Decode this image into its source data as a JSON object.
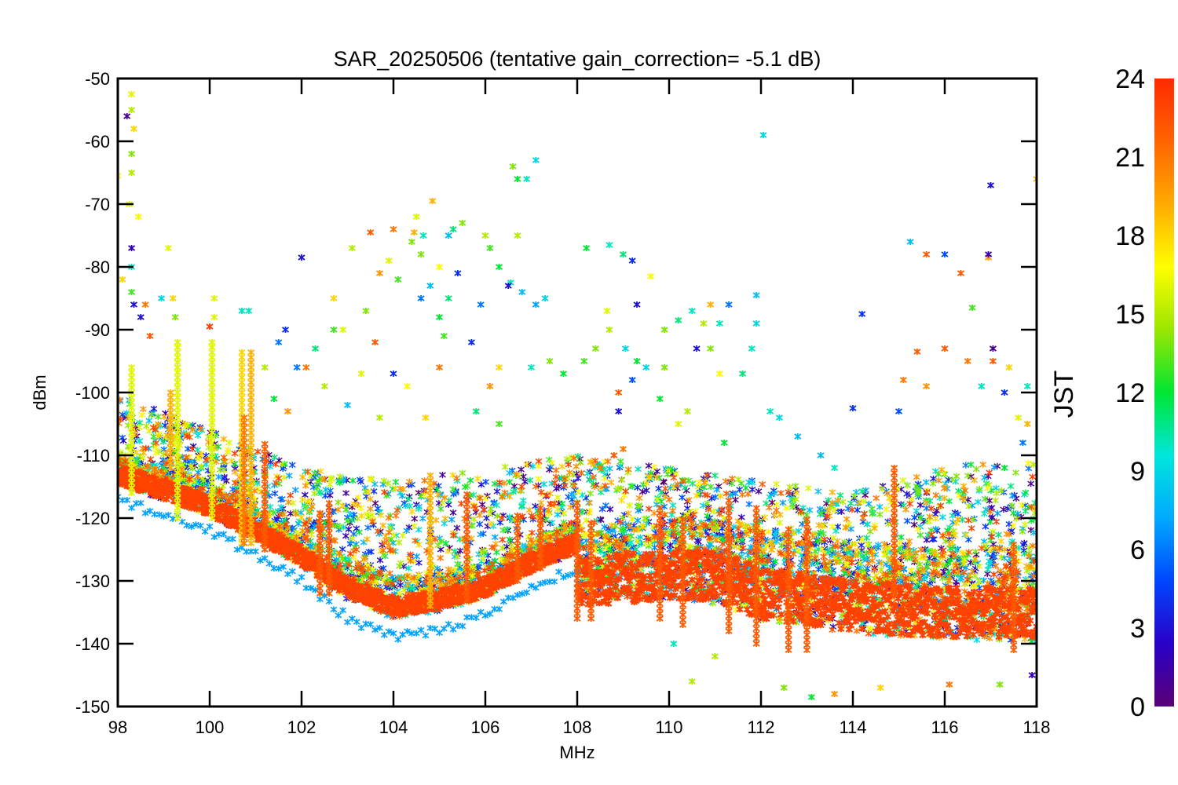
{
  "chart_data": {
    "type": "scatter",
    "title": "SAR_20250506 (tentative gain_correction= -5.1 dB)",
    "xlabel": "MHz",
    "ylabel": "dBm",
    "xlim": [
      98,
      118
    ],
    "ylim": [
      -150,
      -50
    ],
    "x_ticks": [
      98,
      100,
      102,
      104,
      106,
      108,
      110,
      112,
      114,
      116,
      118
    ],
    "y_ticks": [
      -150,
      -140,
      -130,
      -120,
      -110,
      -100,
      -90,
      -80,
      -70,
      -60,
      -50
    ],
    "grid": false,
    "marker": "asterisk",
    "color_scale": {
      "label": "JST",
      "range": [
        0,
        24
      ],
      "ticks": [
        0,
        3,
        6,
        9,
        12,
        15,
        18,
        21,
        24
      ],
      "colormap": "rainbow",
      "colors": [
        "#5a0075",
        "#2a00c8",
        "#0046ff",
        "#00aaff",
        "#00e6dc",
        "#00e632",
        "#9be600",
        "#ffff00",
        "#ffaa00",
        "#ff6400",
        "#ff2a00"
      ]
    },
    "noise_floor": {
      "description_points": [
        [
          98,
          -113
        ],
        [
          100,
          -118
        ],
        [
          102,
          -126
        ],
        [
          103,
          -131
        ],
        [
          104,
          -134
        ],
        [
          105,
          -133
        ],
        [
          106,
          -131
        ],
        [
          107,
          -127
        ],
        [
          108,
          -124
        ],
        [
          108.01,
          -130
        ],
        [
          110,
          -129
        ],
        [
          111,
          -129
        ],
        [
          112,
          -132
        ],
        [
          114,
          -134
        ],
        [
          116,
          -135
        ],
        [
          118,
          -135
        ]
      ],
      "hour": 23
    },
    "lower_envelope": [
      [
        98,
        -117
      ],
      [
        100,
        -122
      ],
      [
        102,
        -130
      ],
      [
        103,
        -136
      ],
      [
        104,
        -139
      ],
      [
        105,
        -138
      ],
      [
        106,
        -135
      ],
      [
        107,
        -131
      ],
      [
        108,
        -128
      ],
      [
        108.01,
        -138
      ],
      [
        110,
        -139
      ],
      [
        112,
        -143
      ],
      [
        114,
        -145
      ],
      [
        116,
        -146
      ],
      [
        118,
        -147
      ]
    ],
    "upper_envelope": [
      [
        98,
        -100
      ],
      [
        100,
        -106
      ],
      [
        102,
        -112
      ],
      [
        104,
        -114
      ],
      [
        106,
        -112
      ],
      [
        108,
        -110
      ],
      [
        110,
        -112
      ],
      [
        112,
        -114
      ],
      [
        114,
        -116
      ],
      [
        116,
        -112
      ],
      [
        118,
        -110
      ]
    ],
    "outliers": [
      {
        "x": 98.2,
        "y": -56,
        "h": 1
      },
      {
        "x": 98.3,
        "y": -52.5,
        "h": 16
      },
      {
        "x": 98.3,
        "y": -55,
        "h": 15
      },
      {
        "x": 98.35,
        "y": -58,
        "h": 18
      },
      {
        "x": 98.3,
        "y": -62,
        "h": 14
      },
      {
        "x": 98.3,
        "y": -65,
        "h": 15
      },
      {
        "x": 98.0,
        "y": -65.5,
        "h": 17
      },
      {
        "x": 98.25,
        "y": -70,
        "h": 16
      },
      {
        "x": 98.45,
        "y": -72,
        "h": 17
      },
      {
        "x": 98.3,
        "y": -77,
        "h": 2
      },
      {
        "x": 98.3,
        "y": -80,
        "h": 10
      },
      {
        "x": 98.1,
        "y": -82,
        "h": 18
      },
      {
        "x": 98.3,
        "y": -84,
        "h": 13
      },
      {
        "x": 98.35,
        "y": -86,
        "h": 3
      },
      {
        "x": 98.6,
        "y": -86,
        "h": 21
      },
      {
        "x": 99.1,
        "y": -77,
        "h": 16
      },
      {
        "x": 98.95,
        "y": -85,
        "h": 9
      },
      {
        "x": 99.2,
        "y": -85,
        "h": 18
      },
      {
        "x": 99.25,
        "y": -88,
        "h": 14
      },
      {
        "x": 98.5,
        "y": -88,
        "h": 3
      },
      {
        "x": 98.7,
        "y": -91,
        "h": 22
      },
      {
        "x": 100.0,
        "y": -89.5,
        "h": 23
      },
      {
        "x": 100.1,
        "y": -85,
        "h": 16
      },
      {
        "x": 100.1,
        "y": -88,
        "h": 16
      },
      {
        "x": 100.7,
        "y": -87,
        "h": 10
      },
      {
        "x": 100.85,
        "y": -87,
        "h": 10
      },
      {
        "x": 101.2,
        "y": -96,
        "h": 15
      },
      {
        "x": 102.0,
        "y": -78.5,
        "h": 3
      },
      {
        "x": 101.5,
        "y": -92,
        "h": 6
      },
      {
        "x": 101.65,
        "y": -90,
        "h": 4
      },
      {
        "x": 102.3,
        "y": -93,
        "h": 11
      },
      {
        "x": 102.7,
        "y": -85,
        "h": 18
      },
      {
        "x": 102.7,
        "y": -90,
        "h": 13
      },
      {
        "x": 102.9,
        "y": -90,
        "h": 16
      },
      {
        "x": 103.1,
        "y": -77,
        "h": 15
      },
      {
        "x": 103.4,
        "y": -87,
        "h": 14
      },
      {
        "x": 103.5,
        "y": -74.5,
        "h": 22
      },
      {
        "x": 103.7,
        "y": -81,
        "h": 20
      },
      {
        "x": 103.9,
        "y": -79,
        "h": 16
      },
      {
        "x": 104.0,
        "y": -74,
        "h": 21
      },
      {
        "x": 104.1,
        "y": -82,
        "h": 13
      },
      {
        "x": 104.4,
        "y": -76,
        "h": 14
      },
      {
        "x": 104.45,
        "y": -74.5,
        "h": 19
      },
      {
        "x": 104.5,
        "y": -72,
        "h": 16
      },
      {
        "x": 104.65,
        "y": -75,
        "h": 10
      },
      {
        "x": 104.6,
        "y": -78,
        "h": 14
      },
      {
        "x": 104.8,
        "y": -83,
        "h": 8
      },
      {
        "x": 104.6,
        "y": -85,
        "h": 6
      },
      {
        "x": 104.85,
        "y": -69.5,
        "h": 19
      },
      {
        "x": 105.0,
        "y": -80,
        "h": 17
      },
      {
        "x": 105.2,
        "y": -85,
        "h": 11
      },
      {
        "x": 105.2,
        "y": -75,
        "h": 8
      },
      {
        "x": 105.3,
        "y": -74,
        "h": 11
      },
      {
        "x": 105.5,
        "y": -73,
        "h": 14
      },
      {
        "x": 105.4,
        "y": -81,
        "h": 4
      },
      {
        "x": 105.0,
        "y": -88,
        "h": 12
      },
      {
        "x": 105.9,
        "y": -86,
        "h": 6
      },
      {
        "x": 106.0,
        "y": -75,
        "h": 15
      },
      {
        "x": 106.1,
        "y": -77,
        "h": 13
      },
      {
        "x": 106.3,
        "y": -80,
        "h": 12
      },
      {
        "x": 106.55,
        "y": -82.5,
        "h": 10
      },
      {
        "x": 106.7,
        "y": -75,
        "h": 15
      },
      {
        "x": 106.5,
        "y": -83,
        "h": 3
      },
      {
        "x": 106.6,
        "y": -64,
        "h": 14
      },
      {
        "x": 106.7,
        "y": -66,
        "h": 12
      },
      {
        "x": 106.9,
        "y": -66,
        "h": 10
      },
      {
        "x": 107.1,
        "y": -63,
        "h": 9
      },
      {
        "x": 106.8,
        "y": -84,
        "h": 8
      },
      {
        "x": 107.1,
        "y": -86,
        "h": 7
      },
      {
        "x": 107.3,
        "y": -85,
        "h": 9
      },
      {
        "x": 107.4,
        "y": -95,
        "h": 14
      },
      {
        "x": 107.7,
        "y": -97,
        "h": 12
      },
      {
        "x": 107.0,
        "y": -96,
        "h": 10
      },
      {
        "x": 106.3,
        "y": -96,
        "h": 18
      },
      {
        "x": 106.1,
        "y": -99,
        "h": 20
      },
      {
        "x": 105.0,
        "y": -96,
        "h": 21
      },
      {
        "x": 104.3,
        "y": -99,
        "h": 17
      },
      {
        "x": 104.0,
        "y": -97,
        "h": 4
      },
      {
        "x": 103.6,
        "y": -92,
        "h": 22
      },
      {
        "x": 103.3,
        "y": -97,
        "h": 16
      },
      {
        "x": 102.5,
        "y": -99,
        "h": 15
      },
      {
        "x": 102.1,
        "y": -96,
        "h": 21
      },
      {
        "x": 101.9,
        "y": -96,
        "h": 6
      },
      {
        "x": 101.4,
        "y": -101,
        "h": 12
      },
      {
        "x": 101.7,
        "y": -103,
        "h": 20
      },
      {
        "x": 103.0,
        "y": -102,
        "h": 8
      },
      {
        "x": 103.7,
        "y": -104,
        "h": 15
      },
      {
        "x": 104.7,
        "y": -104,
        "h": 18
      },
      {
        "x": 105.8,
        "y": -103,
        "h": 11
      },
      {
        "x": 106.3,
        "y": -105,
        "h": 13
      },
      {
        "x": 105.7,
        "y": -92,
        "h": 4
      },
      {
        "x": 105.1,
        "y": -91,
        "h": 13
      },
      {
        "x": 108.2,
        "y": -77,
        "h": 12
      },
      {
        "x": 108.7,
        "y": -76.5,
        "h": 10
      },
      {
        "x": 109.0,
        "y": -78,
        "h": 11
      },
      {
        "x": 109.2,
        "y": -79,
        "h": 4
      },
      {
        "x": 109.6,
        "y": -81.5,
        "h": 17
      },
      {
        "x": 109.3,
        "y": -86,
        "h": 3
      },
      {
        "x": 108.65,
        "y": -87,
        "h": 16
      },
      {
        "x": 108.7,
        "y": -90,
        "h": 15
      },
      {
        "x": 108.4,
        "y": -93,
        "h": 14
      },
      {
        "x": 108.15,
        "y": -95,
        "h": 13
      },
      {
        "x": 109.05,
        "y": -93,
        "h": 9
      },
      {
        "x": 109.3,
        "y": -95,
        "h": 12
      },
      {
        "x": 109.5,
        "y": -96,
        "h": 9
      },
      {
        "x": 109.9,
        "y": -96,
        "h": 14
      },
      {
        "x": 109.9,
        "y": -90,
        "h": 14
      },
      {
        "x": 110.2,
        "y": -88.5,
        "h": 11
      },
      {
        "x": 110.5,
        "y": -87,
        "h": 10
      },
      {
        "x": 110.6,
        "y": -93,
        "h": 3
      },
      {
        "x": 110.75,
        "y": -89,
        "h": 15
      },
      {
        "x": 110.9,
        "y": -93,
        "h": 14
      },
      {
        "x": 111.1,
        "y": -89,
        "h": 10
      },
      {
        "x": 111.1,
        "y": -97,
        "h": 17
      },
      {
        "x": 111.6,
        "y": -97,
        "h": 11
      },
      {
        "x": 111.8,
        "y": -93,
        "h": 10
      },
      {
        "x": 111.9,
        "y": -89,
        "h": 9
      },
      {
        "x": 111.9,
        "y": -84.5,
        "h": 8
      },
      {
        "x": 111.3,
        "y": -86,
        "h": 6
      },
      {
        "x": 110.9,
        "y": -86,
        "h": 19
      },
      {
        "x": 112.05,
        "y": -59,
        "h": 9
      },
      {
        "x": 112.2,
        "y": -103,
        "h": 10
      },
      {
        "x": 112.4,
        "y": -104,
        "h": 9
      },
      {
        "x": 112.8,
        "y": -107,
        "h": 8
      },
      {
        "x": 113.3,
        "y": -110,
        "h": 8
      },
      {
        "x": 114.0,
        "y": -102.5,
        "h": 4
      },
      {
        "x": 113.6,
        "y": -112,
        "h": 10
      },
      {
        "x": 114.2,
        "y": -87.5,
        "h": 4
      },
      {
        "x": 115.25,
        "y": -76,
        "h": 8
      },
      {
        "x": 115.6,
        "y": -78,
        "h": 22
      },
      {
        "x": 116.0,
        "y": -78,
        "h": 5
      },
      {
        "x": 116.35,
        "y": -81,
        "h": 22
      },
      {
        "x": 116.6,
        "y": -86.5,
        "h": 13
      },
      {
        "x": 116.95,
        "y": -78.5,
        "h": 20
      },
      {
        "x": 116.95,
        "y": -78,
        "h": 2
      },
      {
        "x": 117.0,
        "y": -67,
        "h": 3
      },
      {
        "x": 118.0,
        "y": -66,
        "h": 19
      },
      {
        "x": 117.05,
        "y": -93,
        "h": 1
      },
      {
        "x": 117.05,
        "y": -95,
        "h": 22
      },
      {
        "x": 117.4,
        "y": -96,
        "h": 18
      },
      {
        "x": 117.8,
        "y": -99,
        "h": 10
      },
      {
        "x": 116.0,
        "y": -93,
        "h": 22
      },
      {
        "x": 116.5,
        "y": -95,
        "h": 21
      },
      {
        "x": 115.4,
        "y": -93.5,
        "h": 22
      },
      {
        "x": 115.1,
        "y": -98,
        "h": 21
      },
      {
        "x": 115.0,
        "y": -103,
        "h": 5
      },
      {
        "x": 115.6,
        "y": -99,
        "h": 20
      },
      {
        "x": 116.8,
        "y": -99,
        "h": 10
      },
      {
        "x": 117.3,
        "y": -100,
        "h": 4
      },
      {
        "x": 117.6,
        "y": -104,
        "h": 16
      },
      {
        "x": 117.8,
        "y": -105,
        "h": 19
      },
      {
        "x": 117.3,
        "y": -112,
        "h": 12
      },
      {
        "x": 117.7,
        "y": -108,
        "h": 6
      },
      {
        "x": 111.2,
        "y": -108,
        "h": 12
      },
      {
        "x": 110.4,
        "y": -103,
        "h": 15
      },
      {
        "x": 110.2,
        "y": -105,
        "h": 16
      },
      {
        "x": 109.8,
        "y": -101,
        "h": 12
      },
      {
        "x": 108.9,
        "y": -100,
        "h": 22
      },
      {
        "x": 108.9,
        "y": -103,
        "h": 3
      },
      {
        "x": 109.2,
        "y": -98,
        "h": 5
      },
      {
        "x": 109.0,
        "y": -109,
        "h": 21
      },
      {
        "x": 108.8,
        "y": -110,
        "h": 22
      },
      {
        "x": 108.5,
        "y": -112,
        "h": 21
      },
      {
        "x": 110.5,
        "y": -146,
        "h": 15
      },
      {
        "x": 113.6,
        "y": -148,
        "h": 20
      },
      {
        "x": 113.1,
        "y": -148.5,
        "h": 12
      },
      {
        "x": 114.6,
        "y": -147,
        "h": 18
      },
      {
        "x": 112.5,
        "y": -147,
        "h": 14
      },
      {
        "x": 116.1,
        "y": -146.5,
        "h": 21
      },
      {
        "x": 117.2,
        "y": -146.5,
        "h": 14
      },
      {
        "x": 117.9,
        "y": -145,
        "h": 2
      },
      {
        "x": 110.1,
        "y": -140,
        "h": 10
      },
      {
        "x": 111.0,
        "y": -142,
        "h": 15
      }
    ],
    "spikes": [
      {
        "x": 98.3,
        "y_top": -96,
        "y_bottom": -116,
        "h": 16
      },
      {
        "x": 99.3,
        "y_top": -92,
        "y_bottom": -120,
        "h": 16
      },
      {
        "x": 99.15,
        "y_top": -100,
        "y_bottom": -112,
        "h": 19
      },
      {
        "x": 100.05,
        "y_top": -92,
        "y_bottom": -120,
        "h": 16
      },
      {
        "x": 100.7,
        "y_top": -93,
        "y_bottom": -124,
        "h": 18
      },
      {
        "x": 100.75,
        "y_top": -104,
        "y_bottom": -124,
        "h": 21
      },
      {
        "x": 100.9,
        "y_top": -93,
        "y_bottom": -124,
        "h": 19
      },
      {
        "x": 101.2,
        "y_top": -108,
        "y_bottom": -125,
        "h": 22
      },
      {
        "x": 102.4,
        "y_top": -119,
        "y_bottom": -132,
        "h": 22
      },
      {
        "x": 102.6,
        "y_top": -117,
        "y_bottom": -132,
        "h": 22
      },
      {
        "x": 104.8,
        "y_top": -113,
        "y_bottom": -134,
        "h": 19
      },
      {
        "x": 105.6,
        "y_top": -116,
        "y_bottom": -133,
        "h": 22
      },
      {
        "x": 106.7,
        "y_top": -119,
        "y_bottom": -130,
        "h": 22
      },
      {
        "x": 107.2,
        "y_top": -118,
        "y_bottom": -128,
        "h": 22
      },
      {
        "x": 108.0,
        "y_top": -117,
        "y_bottom": -136,
        "h": 22
      },
      {
        "x": 108.3,
        "y_top": -120,
        "y_bottom": -136,
        "h": 22
      },
      {
        "x": 109.8,
        "y_top": -118,
        "y_bottom": -136,
        "h": 22
      },
      {
        "x": 110.3,
        "y_top": -120,
        "y_bottom": -137,
        "h": 22
      },
      {
        "x": 111.3,
        "y_top": -117,
        "y_bottom": -138,
        "h": 22
      },
      {
        "x": 111.9,
        "y_top": -118,
        "y_bottom": -140,
        "h": 22
      },
      {
        "x": 112.6,
        "y_top": -121,
        "y_bottom": -141,
        "h": 22
      },
      {
        "x": 113.0,
        "y_top": -120,
        "y_bottom": -141,
        "h": 22
      },
      {
        "x": 114.9,
        "y_top": -112,
        "y_bottom": -132,
        "h": 22
      },
      {
        "x": 117.5,
        "y_top": -124,
        "y_bottom": -141,
        "h": 22
      }
    ]
  }
}
